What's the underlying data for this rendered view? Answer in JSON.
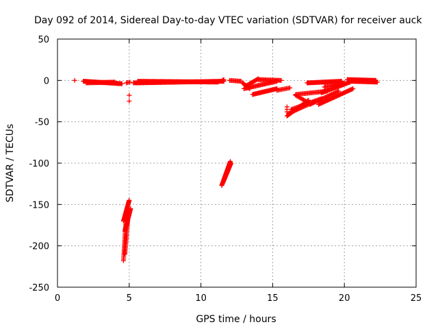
{
  "chart_data": {
    "type": "scatter",
    "title": "Day 092 of 2014, Sidereal Day-to-day VTEC variation (SDTVAR) for receiver auck",
    "xlabel": "GPS time / hours",
    "ylabel": "SDTVAR / TECUs",
    "xlim": [
      0,
      25
    ],
    "ylim": [
      -250,
      50
    ],
    "xticks": [
      0,
      5,
      10,
      15,
      20,
      25
    ],
    "yticks": [
      50,
      0,
      -50,
      -100,
      -150,
      -200,
      -250
    ],
    "grid": true,
    "marker": "plus",
    "marker_color": "#ff0000",
    "segments": [
      {
        "x": [
          1.2,
          1.2
        ],
        "y": [
          0,
          0
        ],
        "n": 1
      },
      {
        "x": [
          1.8,
          4.5
        ],
        "y": [
          -1,
          -4
        ],
        "n": 55
      },
      {
        "x": [
          2.0,
          4.0
        ],
        "y": [
          -3,
          -2
        ],
        "n": 30
      },
      {
        "x": [
          4.8,
          5.05
        ],
        "y": [
          -3,
          -2
        ],
        "n": 4
      },
      {
        "x": [
          5.3,
          11.6
        ],
        "y": [
          -3,
          -1
        ],
        "n": 120
      },
      {
        "x": [
          5.6,
          11.2
        ],
        "y": [
          -1,
          -2
        ],
        "n": 90
      },
      {
        "x": [
          11.5,
          11.6
        ],
        "y": [
          0,
          1
        ],
        "n": 3
      },
      {
        "x": [
          12.0,
          12.8
        ],
        "y": [
          0,
          -1
        ],
        "n": 12
      },
      {
        "x": [
          12.9,
          13.4
        ],
        "y": [
          -3,
          -10
        ],
        "n": 10
      },
      {
        "x": [
          13.2,
          14.0
        ],
        "y": [
          -6,
          2
        ],
        "n": 14
      },
      {
        "x": [
          13.0,
          15.3
        ],
        "y": [
          -10,
          -1
        ],
        "n": 35
      },
      {
        "x": [
          14.0,
          15.6
        ],
        "y": [
          1,
          0
        ],
        "n": 25
      },
      {
        "x": [
          13.6,
          15.3
        ],
        "y": [
          -17,
          -10
        ],
        "n": 30
      },
      {
        "x": [
          15.3,
          16.2
        ],
        "y": [
          -12,
          -9
        ],
        "n": 12
      },
      {
        "x": [
          16.0,
          16.0
        ],
        "y": [
          -32,
          -38
        ],
        "n": 3
      },
      {
        "x": [
          16.0,
          17.5
        ],
        "y": [
          -43,
          -24
        ],
        "n": 28
      },
      {
        "x": [
          16.1,
          18.0
        ],
        "y": [
          -40,
          -25
        ],
        "n": 28
      },
      {
        "x": [
          16.3,
          18.4
        ],
        "y": [
          -35,
          -22
        ],
        "n": 28
      },
      {
        "x": [
          16.6,
          17.3
        ],
        "y": [
          -18,
          -25
        ],
        "n": 10
      },
      {
        "x": [
          16.6,
          18.8
        ],
        "y": [
          -17,
          -13
        ],
        "n": 30
      },
      {
        "x": [
          17.4,
          19.8
        ],
        "y": [
          -3,
          -1
        ],
        "n": 45
      },
      {
        "x": [
          17.6,
          19.6
        ],
        "y": [
          -29,
          -13
        ],
        "n": 30
      },
      {
        "x": [
          18.2,
          20.6
        ],
        "y": [
          -29,
          -10
        ],
        "n": 40
      },
      {
        "x": [
          18.4,
          20.4
        ],
        "y": [
          -15,
          -2
        ],
        "n": 35
      },
      {
        "x": [
          18.6,
          20.0
        ],
        "y": [
          -8,
          -3
        ],
        "n": 20
      },
      {
        "x": [
          20.2,
          22.2
        ],
        "y": [
          1,
          0
        ],
        "n": 40
      },
      {
        "x": [
          20.4,
          22.3
        ],
        "y": [
          -1,
          -2
        ],
        "n": 35
      },
      {
        "x": [
          5.0,
          5.0
        ],
        "y": [
          -18,
          -25
        ],
        "n": 2
      },
      {
        "x": [
          4.6,
          5.0
        ],
        "y": [
          -170,
          -145
        ],
        "n": 30
      },
      {
        "x": [
          4.7,
          5.1
        ],
        "y": [
          -182,
          -155
        ],
        "n": 30
      },
      {
        "x": [
          4.6,
          4.8
        ],
        "y": [
          -218,
          -160
        ],
        "n": 34
      },
      {
        "x": [
          4.7,
          4.9
        ],
        "y": [
          -210,
          -170
        ],
        "n": 26
      },
      {
        "x": [
          11.45,
          12.05
        ],
        "y": [
          -127,
          -98
        ],
        "n": 34
      },
      {
        "x": [
          11.55,
          12.1
        ],
        "y": [
          -123,
          -100
        ],
        "n": 26
      }
    ]
  }
}
